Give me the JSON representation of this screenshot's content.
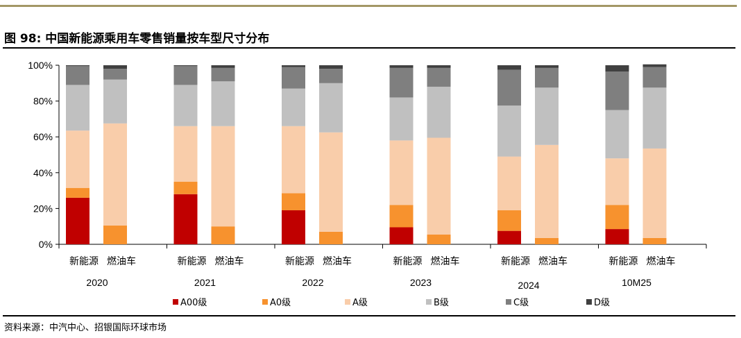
{
  "header": {
    "title": "图 98: 中国新能源乘用车零售销量按车型尺寸分布"
  },
  "footer": {
    "source": "资料来源：中汽中心、招银国际环球市场"
  },
  "colors": {
    "top_band": "#a39766",
    "axis": "#000000"
  },
  "chart_data": {
    "type": "bar",
    "stacked": true,
    "normalized": true,
    "title": "图 98: 中国新能源乘用车零售销量按车型尺寸分布",
    "groups": [
      "2020",
      "2021",
      "2022",
      "2023",
      "2024",
      "10M25"
    ],
    "sub_categories": [
      "新能源",
      "燃油车"
    ],
    "categories": [
      "2020 新能源",
      "2020 燃油车",
      "2021 新能源",
      "2021 燃油车",
      "2022 新能源",
      "2022 燃油车",
      "2023 新能源",
      "2023 燃油车",
      "2024 新能源",
      "2024 燃油车",
      "10M25 新能源",
      "10M25 燃油车"
    ],
    "series": [
      {
        "name": "A00级",
        "color": "#c00000",
        "values": [
          26,
          0,
          28,
          0,
          19,
          0,
          9.5,
          0,
          7.5,
          0,
          8.5,
          0
        ]
      },
      {
        "name": "A0级",
        "color": "#f7922e",
        "values": [
          5.5,
          10.5,
          7,
          10,
          9.5,
          7,
          12.5,
          5.5,
          11.5,
          3.5,
          13.5,
          3.5
        ]
      },
      {
        "name": "A级",
        "color": "#f9cdaa",
        "values": [
          32,
          57,
          31,
          56,
          37.5,
          55.5,
          36,
          54,
          30,
          52,
          26,
          50
        ]
      },
      {
        "name": "B级",
        "color": "#c0c0c0",
        "values": [
          25.5,
          24.5,
          23,
          25,
          21,
          27.5,
          24,
          28.5,
          28.5,
          32,
          27,
          34
        ]
      },
      {
        "name": "C级",
        "color": "#7f7f7f",
        "values": [
          10.5,
          6,
          10.5,
          7.5,
          12,
          8,
          16.5,
          10.5,
          20,
          11,
          21.5,
          11.5
        ]
      },
      {
        "name": "D级",
        "color": "#404040",
        "values": [
          0.5,
          2,
          0.5,
          1.5,
          1,
          2,
          1.5,
          1.5,
          2.5,
          1.5,
          3.5,
          1.5
        ]
      }
    ],
    "yticks": [
      "0%",
      "20%",
      "40%",
      "60%",
      "80%",
      "100%"
    ],
    "ylim": [
      0,
      100
    ],
    "grid": false,
    "legend": "bottom"
  }
}
